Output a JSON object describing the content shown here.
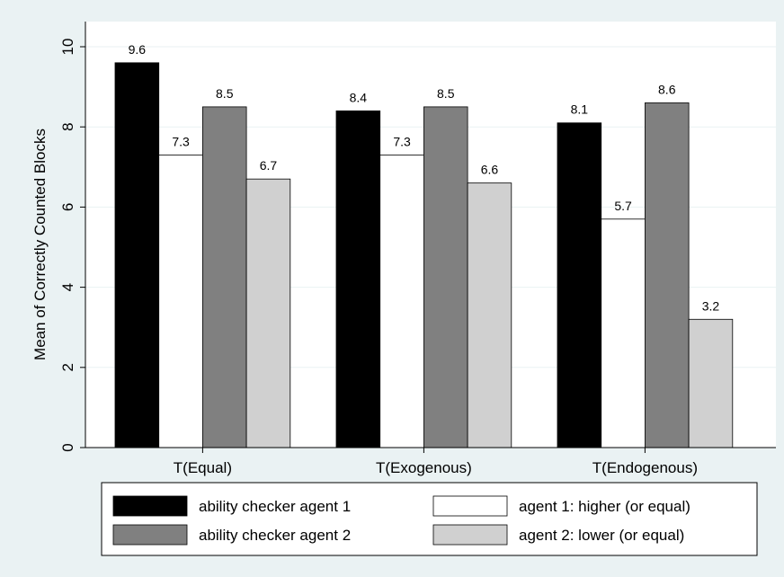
{
  "chart_data": {
    "type": "bar",
    "ylabel": "Mean of Correctly Counted Blocks",
    "ylim": [
      0,
      10
    ],
    "yticks": [
      0,
      2,
      4,
      6,
      8,
      10
    ],
    "grid": true,
    "legend_position": "bottom",
    "categories": [
      "T(Equal)",
      "T(Exogenous)",
      "T(Endogenous)"
    ],
    "series": [
      {
        "name": "ability checker agent 1",
        "color": "#000000",
        "values": [
          9.6,
          8.4,
          8.1
        ],
        "labels": [
          "9.6",
          "8.4",
          "8.1"
        ]
      },
      {
        "name": "agent 1: higher (or equal)",
        "color": "#ffffff",
        "values": [
          7.3,
          7.3,
          5.7
        ],
        "labels": [
          "7.3",
          "7.3",
          "5.7"
        ]
      },
      {
        "name": "ability checker agent 2",
        "color": "#808080",
        "values": [
          8.5,
          8.5,
          8.6
        ],
        "labels": [
          "8.5",
          "8.5",
          "8.6"
        ]
      },
      {
        "name": "agent 2: lower (or equal)",
        "color": "#d0d0d0",
        "values": [
          6.7,
          6.6,
          3.2
        ],
        "labels": [
          "6.7",
          "6.6",
          "3.2"
        ]
      }
    ],
    "legend_order": [
      0,
      1,
      2,
      3
    ]
  }
}
